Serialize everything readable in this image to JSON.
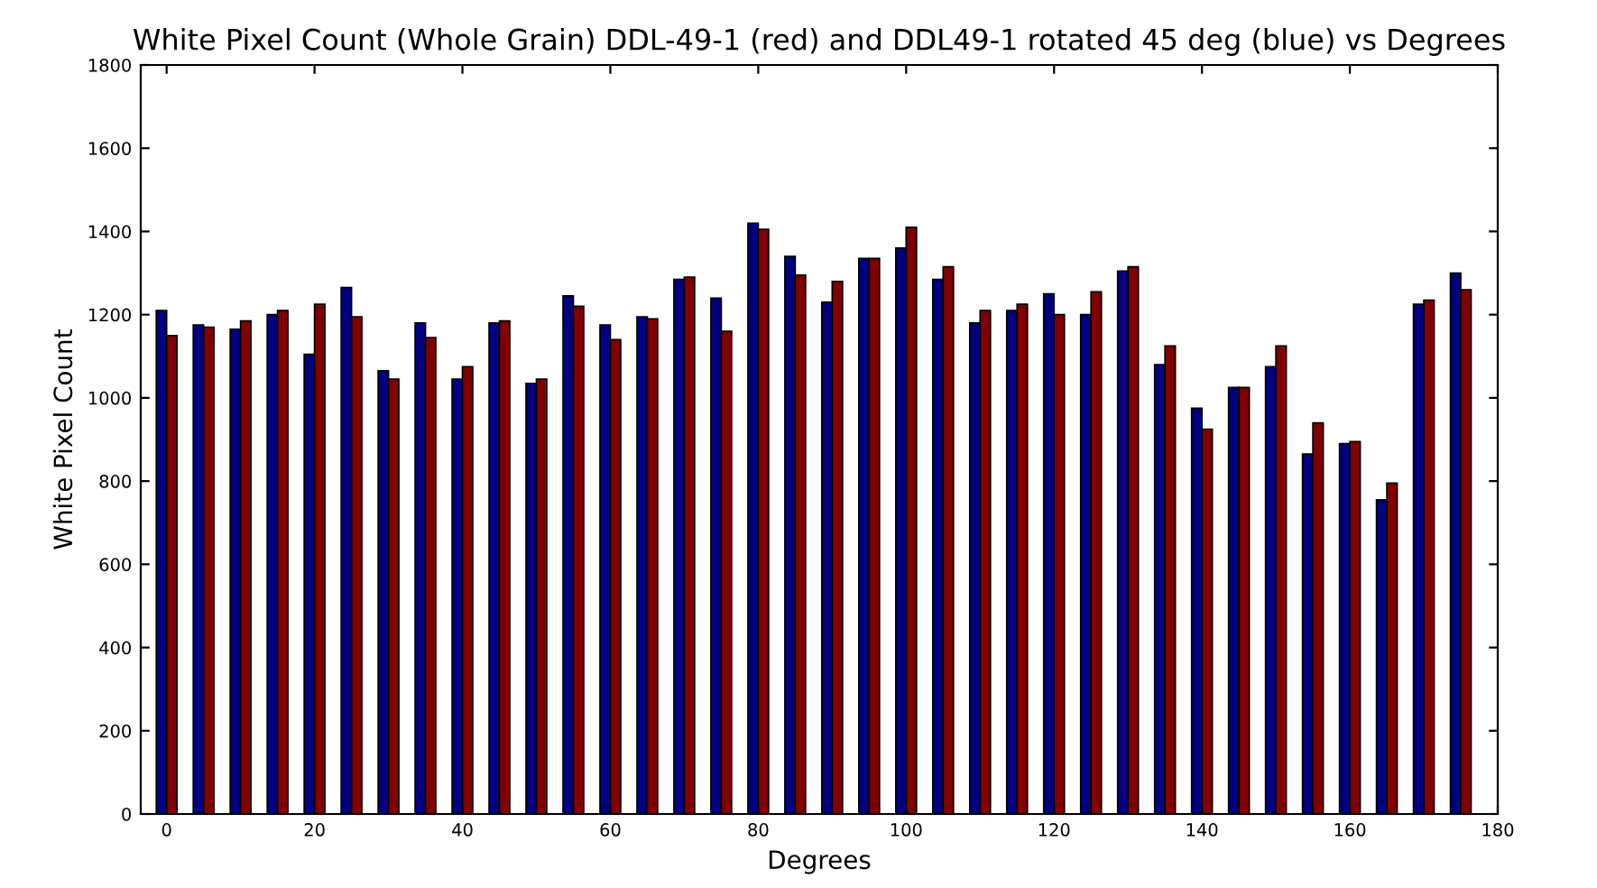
{
  "chart_data": {
    "type": "bar",
    "title": "White Pixel Count (Whole Grain) DDL-49-1 (red) and DDL49-1 rotated 45 deg (blue) vs Degrees",
    "xlabel": "Degrees",
    "ylabel": "White Pixel Count",
    "x": [
      0,
      5,
      10,
      15,
      20,
      25,
      30,
      35,
      40,
      45,
      50,
      55,
      60,
      65,
      70,
      75,
      80,
      85,
      90,
      95,
      100,
      105,
      110,
      115,
      120,
      125,
      130,
      135,
      140,
      145,
      150,
      155,
      160,
      165,
      170,
      175
    ],
    "series": [
      {
        "color": "#000080",
        "values": [
          1210,
          1175,
          1165,
          1200,
          1105,
          1265,
          1065,
          1180,
          1045,
          1180,
          1035,
          1245,
          1175,
          1195,
          1285,
          1240,
          1420,
          1340,
          1230,
          1335,
          1360,
          1285,
          1180,
          1210,
          1250,
          1200,
          1305,
          1080,
          975,
          1025,
          1075,
          865,
          890,
          755,
          1225,
          1300
        ]
      },
      {
        "color": "#800000",
        "values": [
          1150,
          1170,
          1185,
          1210,
          1225,
          1195,
          1045,
          1145,
          1075,
          1185,
          1045,
          1220,
          1140,
          1190,
          1290,
          1160,
          1405,
          1295,
          1280,
          1335,
          1410,
          1315,
          1210,
          1225,
          1200,
          1255,
          1315,
          1125,
          925,
          1025,
          1125,
          940,
          895,
          795,
          1235,
          1260
        ]
      }
    ],
    "xlim": [
      -3.5,
      180
    ],
    "ylim": [
      0,
      1800
    ],
    "xticks": [
      0,
      20,
      40,
      60,
      80,
      100,
      120,
      140,
      160,
      180
    ],
    "yticks": [
      0,
      200,
      400,
      600,
      800,
      1000,
      1200,
      1400,
      1600,
      1800
    ],
    "grid": false
  }
}
